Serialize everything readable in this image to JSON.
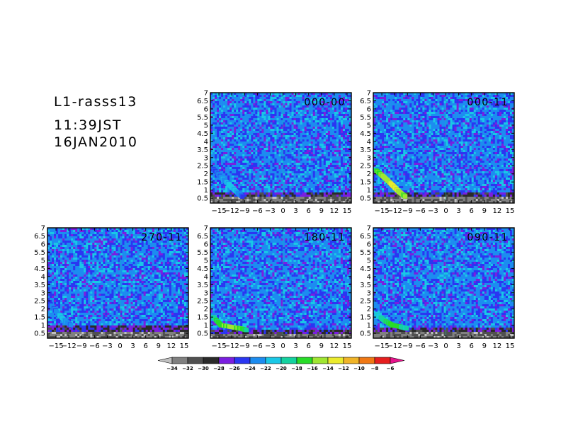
{
  "header": {
    "station": "L1-rasss13",
    "time": "11:39JST",
    "date": "16JAN2010"
  },
  "chart_data": [
    {
      "type": "heatmap",
      "panel_label": "000-00",
      "x_ticks": [
        -15,
        -12,
        -9,
        -6,
        -3,
        0,
        3,
        6,
        9,
        12,
        15
      ],
      "x_tick_labels": [
        "−15",
        "−12",
        "−9",
        "−6",
        "−3",
        "0",
        "3",
        "6",
        "9",
        "12",
        "15"
      ],
      "xlim": [
        -17,
        16
      ],
      "y_ticks": [
        0.5,
        1,
        1.5,
        2,
        2.5,
        3,
        3.5,
        4,
        4.5,
        5,
        5.5,
        6,
        6.5,
        7
      ],
      "y_tick_labels": [
        "0.5",
        "1",
        "1.5",
        "2",
        "2.5",
        "3",
        "3.5",
        "4",
        "4.5",
        "5",
        "5.5",
        "6",
        "6.5",
        "7"
      ],
      "ylim": [
        0.2,
        7
      ],
      "noise_floor_top": 0.8,
      "feature": [
        [
          -16.3,
          2.3
        ],
        [
          -14.5,
          1.8
        ],
        [
          -12.5,
          1.3
        ],
        [
          -10.5,
          0.8
        ],
        [
          -9.5,
          0.6
        ]
      ],
      "feature_peak": -20
    },
    {
      "type": "heatmap",
      "panel_label": "000-11",
      "x_ticks": [
        -15,
        -12,
        -9,
        -6,
        -3,
        0,
        3,
        6,
        9,
        12,
        15
      ],
      "x_tick_labels": [
        "−15",
        "−12",
        "−9",
        "−6",
        "−3",
        "0",
        "3",
        "6",
        "9",
        "12",
        "15"
      ],
      "xlim": [
        -17,
        16
      ],
      "y_ticks": [
        0.5,
        1,
        1.5,
        2,
        2.5,
        3,
        3.5,
        4,
        4.5,
        5,
        5.5,
        6,
        6.5,
        7
      ],
      "y_tick_labels": [
        "0.5",
        "1",
        "1.5",
        "2",
        "2.5",
        "3",
        "3.5",
        "4",
        "4.5",
        "5",
        "5.5",
        "6",
        "6.5",
        "7"
      ],
      "ylim": [
        0.2,
        7
      ],
      "noise_floor_top": 0.8,
      "feature": [
        [
          -16.3,
          2.2
        ],
        [
          -14.5,
          1.8
        ],
        [
          -12.5,
          1.3
        ],
        [
          -11.0,
          0.9
        ],
        [
          -9.5,
          0.6
        ]
      ],
      "feature_peak": -12
    },
    {
      "type": "heatmap",
      "panel_label": "270-11",
      "x_ticks": [
        -15,
        -12,
        -9,
        -6,
        -3,
        0,
        3,
        6,
        9,
        12,
        15
      ],
      "x_tick_labels": [
        "−15",
        "−12",
        "−9",
        "−6",
        "−3",
        "0",
        "3",
        "6",
        "9",
        "12",
        "15"
      ],
      "xlim": [
        -17,
        16
      ],
      "y_ticks": [
        0.5,
        1,
        1.5,
        2,
        2.5,
        3,
        3.5,
        4,
        4.5,
        5,
        5.5,
        6,
        6.5,
        7
      ],
      "y_tick_labels": [
        "0.5",
        "1",
        "1.5",
        "2",
        "2.5",
        "3",
        "3.5",
        "4",
        "4.5",
        "5",
        "5.5",
        "6",
        "6.5",
        "7"
      ],
      "ylim": [
        0.2,
        7
      ],
      "noise_floor_top": 0.9,
      "feature": [
        [
          -16.3,
          2.3
        ],
        [
          -14.5,
          1.7
        ],
        [
          -13.0,
          1.3
        ],
        [
          -11.5,
          1.0
        ]
      ],
      "feature_peak": -20
    },
    {
      "type": "heatmap",
      "panel_label": "180-11",
      "x_ticks": [
        -15,
        -12,
        -9,
        -6,
        -3,
        0,
        3,
        6,
        9,
        12,
        15
      ],
      "x_tick_labels": [
        "−15",
        "−12",
        "−9",
        "−6",
        "−3",
        "0",
        "3",
        "6",
        "9",
        "12",
        "15"
      ],
      "xlim": [
        -17,
        16
      ],
      "y_ticks": [
        0.5,
        1,
        1.5,
        2,
        2.5,
        3,
        3.5,
        4,
        4.5,
        5,
        5.5,
        6,
        6.5,
        7
      ],
      "y_tick_labels": [
        "0.5",
        "1",
        "1.5",
        "2",
        "2.5",
        "3",
        "3.5",
        "4",
        "4.5",
        "5",
        "5.5",
        "6",
        "6.5",
        "7"
      ],
      "ylim": [
        0.2,
        7
      ],
      "noise_floor_top": 0.7,
      "feature": [
        [
          -16.3,
          1.5
        ],
        [
          -14.5,
          1.0
        ],
        [
          -10.0,
          0.8
        ],
        [
          -8.5,
          0.7
        ]
      ],
      "feature_peak": -14
    },
    {
      "type": "heatmap",
      "panel_label": "090-11",
      "x_ticks": [
        -15,
        -12,
        -9,
        -6,
        -3,
        0,
        3,
        6,
        9,
        12,
        15
      ],
      "x_tick_labels": [
        "−15",
        "−12",
        "−9",
        "−6",
        "−3",
        "0",
        "3",
        "6",
        "9",
        "12",
        "15"
      ],
      "xlim": [
        -17,
        16
      ],
      "y_ticks": [
        0.5,
        1,
        1.5,
        2,
        2.5,
        3,
        3.5,
        4,
        4.5,
        5,
        5.5,
        6,
        6.5,
        7
      ],
      "y_tick_labels": [
        "0.5",
        "1",
        "1.5",
        "2",
        "2.5",
        "3",
        "3.5",
        "4",
        "4.5",
        "5",
        "5.5",
        "6",
        "6.5",
        "7"
      ],
      "ylim": [
        0.2,
        7
      ],
      "noise_floor_top": 0.8,
      "feature": [
        [
          -16.3,
          1.7
        ],
        [
          -14.5,
          1.3
        ],
        [
          -12.5,
          1.0
        ],
        [
          -10.5,
          0.9
        ],
        [
          -9.2,
          0.8
        ]
      ],
      "feature_peak": -16
    }
  ],
  "colorbar": {
    "boundaries": [
      -34,
      -32,
      -30,
      -28,
      -26,
      -24,
      -22,
      -20,
      -18,
      -16,
      -14,
      -12,
      -10,
      -8,
      -6
    ],
    "labels": [
      "−34",
      "−32",
      "−30",
      "−28",
      "−26",
      "−24",
      "−22",
      "−20",
      "−18",
      "−16",
      "−14",
      "−12",
      "−10",
      "−8",
      "−6"
    ],
    "colors": [
      "#c0c0c0",
      "#808080",
      "#505050",
      "#2a2a2a",
      "#7a1ee0",
      "#2a36f2",
      "#1c8cf0",
      "#19c8e6",
      "#14d2a0",
      "#28dc28",
      "#a0e632",
      "#ebeb2d",
      "#f0b428",
      "#f07814",
      "#e61e1e",
      "#e6148c"
    ]
  }
}
